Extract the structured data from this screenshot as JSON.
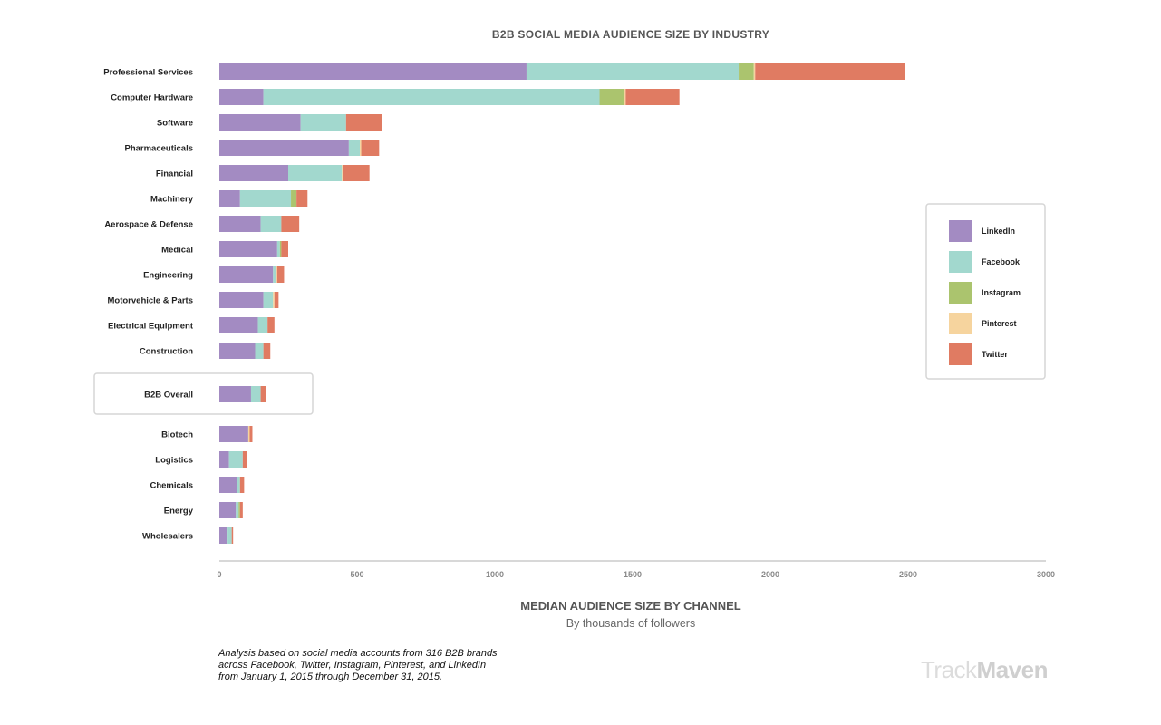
{
  "chart_data": {
    "type": "bar",
    "orientation": "horizontal",
    "stacked": true,
    "title": "B2B SOCIAL MEDIA AUDIENCE SIZE BY INDUSTRY",
    "xlabel": "MEDIAN AUDIENCE SIZE BY CHANNEL",
    "xsublabel": "By thousands of followers",
    "xlim": [
      0,
      3000
    ],
    "xticks": [
      0,
      500,
      1000,
      1500,
      2000,
      2500,
      3000
    ],
    "legend_position": "right",
    "highlighted_category": "B2B Overall",
    "series": [
      {
        "name": "LinkedIn",
        "color": "#a38bc2"
      },
      {
        "name": "Facebook",
        "color": "#a2d8ce"
      },
      {
        "name": "Instagram",
        "color": "#abc46e"
      },
      {
        "name": "Pinterest",
        "color": "#f6d49e"
      },
      {
        "name": "Twitter",
        "color": "#e07b62"
      }
    ],
    "rows": [
      {
        "category": "Professional Services",
        "values": [
          1115,
          770,
          55,
          5,
          545
        ]
      },
      {
        "category": "Computer Hardware",
        "values": [
          160,
          1220,
          90,
          5,
          195
        ]
      },
      {
        "category": "Software",
        "values": [
          295,
          165,
          0,
          0,
          130
        ]
      },
      {
        "category": "Pharmaceuticals",
        "values": [
          470,
          40,
          0,
          5,
          65
        ]
      },
      {
        "category": "Financial",
        "values": [
          250,
          195,
          0,
          5,
          95
        ]
      },
      {
        "category": "Machinery",
        "values": [
          75,
          185,
          20,
          0,
          40
        ]
      },
      {
        "category": "Aerospace & Defense",
        "values": [
          150,
          75,
          0,
          0,
          65
        ]
      },
      {
        "category": "Medical",
        "values": [
          210,
          10,
          5,
          0,
          25
        ]
      },
      {
        "category": "Engineering",
        "values": [
          195,
          10,
          0,
          5,
          25
        ]
      },
      {
        "category": "Motorvehicle & Parts",
        "values": [
          160,
          35,
          0,
          5,
          15
        ]
      },
      {
        "category": "Electrical Equipment",
        "values": [
          140,
          35,
          0,
          0,
          25
        ]
      },
      {
        "category": "Construction",
        "values": [
          130,
          30,
          0,
          0,
          25
        ]
      },
      {
        "category": "B2B Overall",
        "values": [
          115,
          35,
          0,
          0,
          20
        ]
      },
      {
        "category": "Biotech",
        "values": [
          105,
          0,
          0,
          5,
          10
        ]
      },
      {
        "category": "Logistics",
        "values": [
          35,
          50,
          0,
          0,
          15
        ]
      },
      {
        "category": "Chemicals",
        "values": [
          65,
          10,
          0,
          0,
          15
        ]
      },
      {
        "category": "Energy",
        "values": [
          60,
          10,
          5,
          0,
          10
        ]
      },
      {
        "category": "Wholesalers",
        "values": [
          30,
          15,
          0,
          0,
          5
        ]
      }
    ]
  },
  "footnote": "Analysis based on social media accounts from 316 B2B brands across Facebook, Twitter, Instagram, Pinterest, and LinkedIn from January 1, 2015 through December 31, 2015.",
  "brand": {
    "part1": "Track",
    "part2": "Maven"
  }
}
